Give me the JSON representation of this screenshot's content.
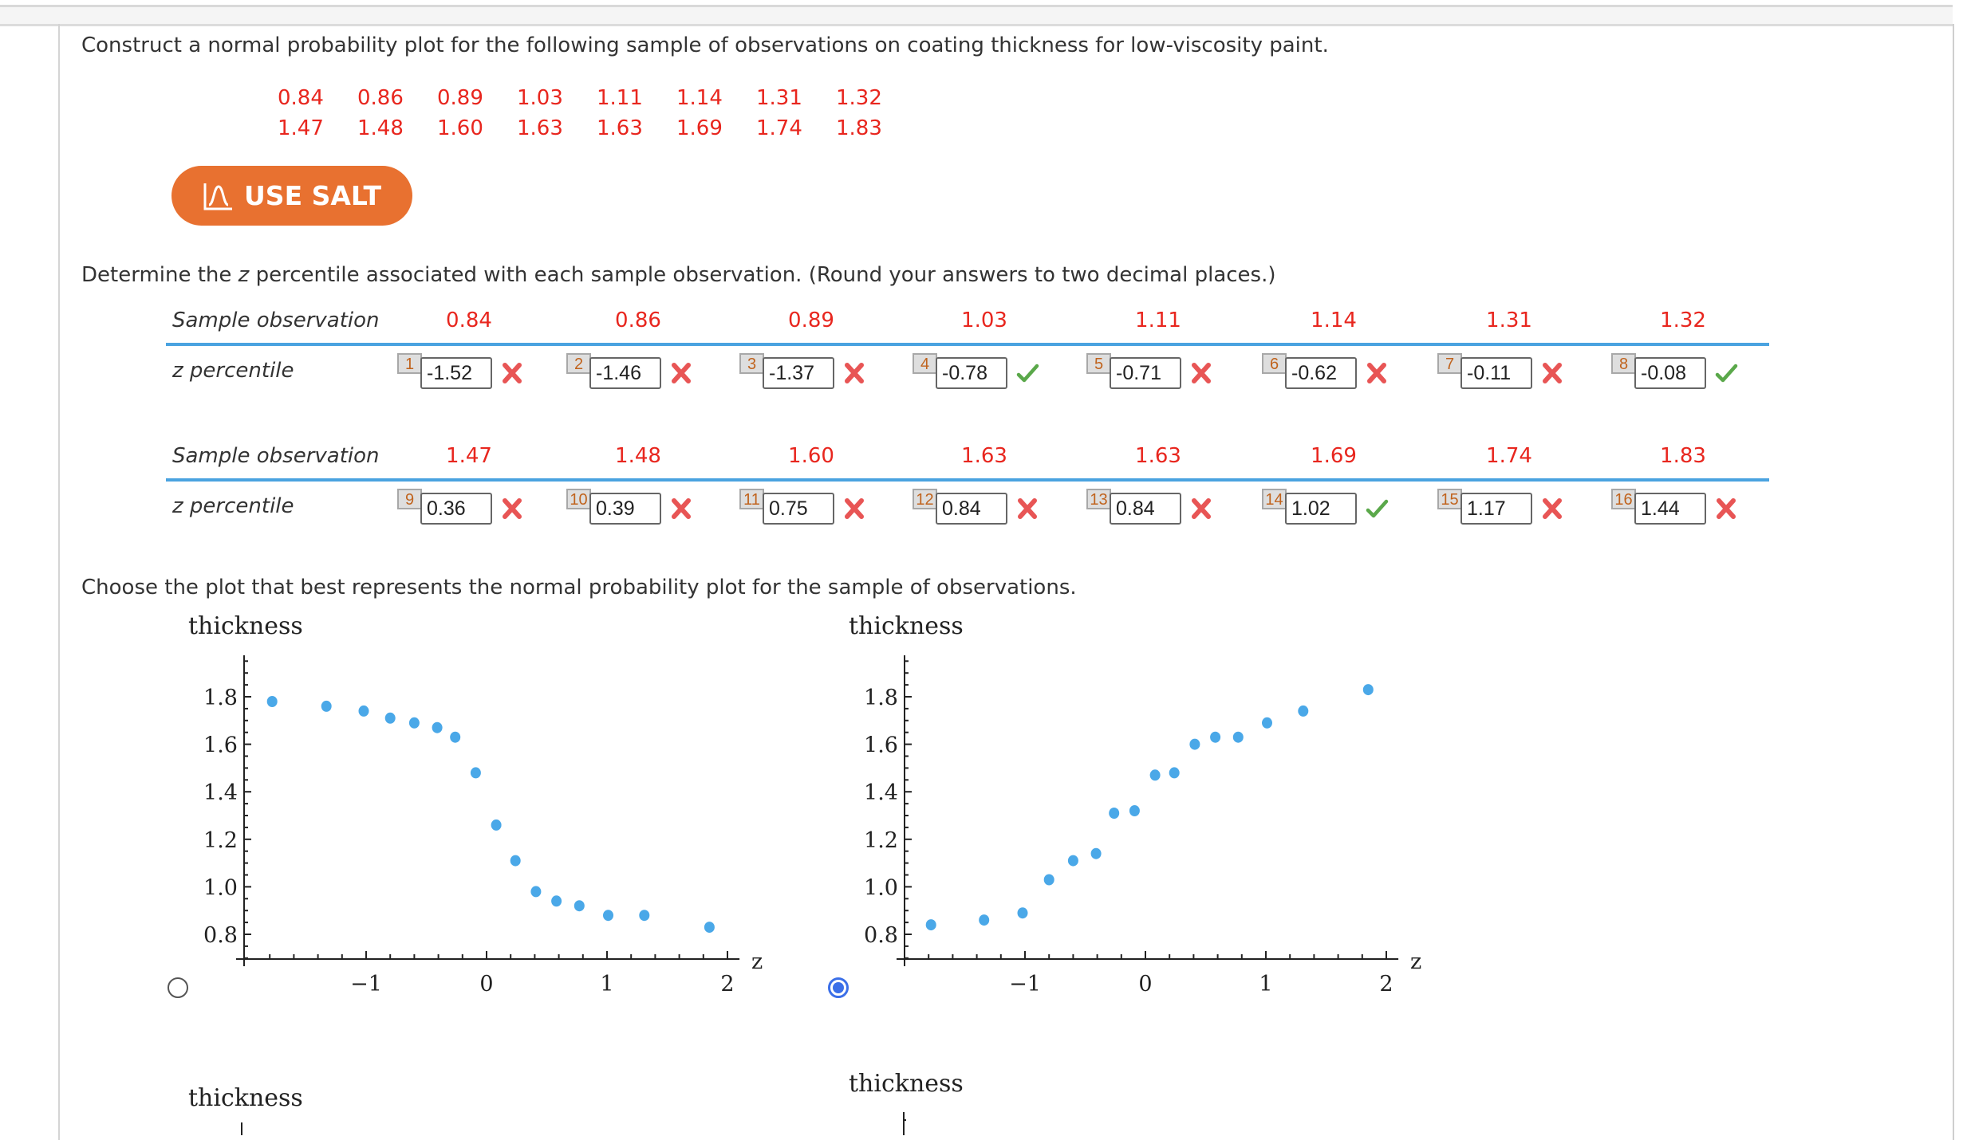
{
  "question": {
    "text": "Construct a normal probability plot for the following sample of observations on coating thickness for low-viscosity paint.",
    "observations": [
      "0.84",
      "0.86",
      "0.89",
      "1.03",
      "1.11",
      "1.14",
      "1.31",
      "1.32",
      "1.47",
      "1.48",
      "1.60",
      "1.63",
      "1.63",
      "1.69",
      "1.74",
      "1.83"
    ]
  },
  "salt_button": {
    "label": "USE SALT",
    "icon": "bell-curve-icon"
  },
  "instruction": {
    "prefix": "Determine the ",
    "italic": "z",
    "suffix": " percentile associated with each sample observation. (Round your answers to two decimal places.)"
  },
  "table": {
    "row_header_obs": "Sample observation",
    "row_header_z": "z percentile",
    "rows": [
      {
        "cells": [
          {
            "n": "1",
            "obs": "0.84",
            "value": "-1.52",
            "status": "incorrect"
          },
          {
            "n": "2",
            "obs": "0.86",
            "value": "-1.46",
            "status": "incorrect"
          },
          {
            "n": "3",
            "obs": "0.89",
            "value": "-1.37",
            "status": "incorrect"
          },
          {
            "n": "4",
            "obs": "1.03",
            "value": "-0.78",
            "status": "correct"
          },
          {
            "n": "5",
            "obs": "1.11",
            "value": "-0.71",
            "status": "incorrect"
          },
          {
            "n": "6",
            "obs": "1.14",
            "value": "-0.62",
            "status": "incorrect"
          },
          {
            "n": "7",
            "obs": "1.31",
            "value": "-0.11",
            "status": "incorrect"
          },
          {
            "n": "8",
            "obs": "1.32",
            "value": "-0.08",
            "status": "correct"
          }
        ]
      },
      {
        "cells": [
          {
            "n": "9",
            "obs": "1.47",
            "value": "0.36",
            "status": "incorrect"
          },
          {
            "n": "10",
            "obs": "1.48",
            "value": "0.39",
            "status": "incorrect"
          },
          {
            "n": "11",
            "obs": "1.60",
            "value": "0.75",
            "status": "incorrect"
          },
          {
            "n": "12",
            "obs": "1.63",
            "value": "0.84",
            "status": "incorrect"
          },
          {
            "n": "13",
            "obs": "1.63",
            "value": "0.84",
            "status": "incorrect"
          },
          {
            "n": "14",
            "obs": "1.69",
            "value": "1.02",
            "status": "correct"
          },
          {
            "n": "15",
            "obs": "1.74",
            "value": "1.17",
            "status": "incorrect"
          },
          {
            "n": "16",
            "obs": "1.83",
            "value": "1.44",
            "status": "incorrect"
          }
        ]
      }
    ]
  },
  "choose_text": "Choose the plot that best represents the normal probability plot for the sample of observations.",
  "colors": {
    "observation_red": "#e8261e",
    "salt_orange": "#e87130",
    "table_rule_blue": "#4aa3e0",
    "point_blue": "#4aa8e8",
    "correct_green": "#5aa84a",
    "incorrect_red": "#e85555",
    "radio_selected": "#3b6fe8"
  },
  "chart_data": [
    {
      "type": "scatter",
      "title": "",
      "ylabel": "thickness",
      "xlabel": "z",
      "xticks": [
        "-1",
        "0",
        "1",
        "2"
      ],
      "yticks": [
        "0.8",
        "1.0",
        "1.2",
        "1.4",
        "1.6",
        "1.8"
      ],
      "xlim": [
        -1.9,
        2.05
      ],
      "ylim": [
        0.7,
        1.97
      ],
      "selected": false,
      "points": [
        {
          "x": -1.78,
          "y": 1.78
        },
        {
          "x": -1.33,
          "y": 1.76
        },
        {
          "x": -1.02,
          "y": 1.74
        },
        {
          "x": -0.8,
          "y": 1.71
        },
        {
          "x": -0.6,
          "y": 1.69
        },
        {
          "x": -0.41,
          "y": 1.67
        },
        {
          "x": -0.26,
          "y": 1.63
        },
        {
          "x": -0.09,
          "y": 1.48
        },
        {
          "x": 0.08,
          "y": 1.26
        },
        {
          "x": 0.24,
          "y": 1.11
        },
        {
          "x": 0.41,
          "y": 0.98
        },
        {
          "x": 0.58,
          "y": 0.94
        },
        {
          "x": 0.77,
          "y": 0.92
        },
        {
          "x": 1.01,
          "y": 0.88
        },
        {
          "x": 1.31,
          "y": 0.88
        },
        {
          "x": 1.85,
          "y": 0.83
        }
      ]
    },
    {
      "type": "scatter",
      "title": "",
      "ylabel": "thickness",
      "xlabel": "z",
      "xticks": [
        "-1",
        "0",
        "1",
        "2"
      ],
      "yticks": [
        "0.8",
        "1.0",
        "1.2",
        "1.4",
        "1.6",
        "1.8"
      ],
      "xlim": [
        -1.9,
        2.05
      ],
      "ylim": [
        0.7,
        1.97
      ],
      "selected": true,
      "points": [
        {
          "x": -1.78,
          "y": 0.84
        },
        {
          "x": -1.34,
          "y": 0.86
        },
        {
          "x": -1.02,
          "y": 0.89
        },
        {
          "x": -0.8,
          "y": 1.03
        },
        {
          "x": -0.6,
          "y": 1.11
        },
        {
          "x": -0.41,
          "y": 1.14
        },
        {
          "x": -0.26,
          "y": 1.31
        },
        {
          "x": -0.09,
          "y": 1.32
        },
        {
          "x": 0.08,
          "y": 1.47
        },
        {
          "x": 0.24,
          "y": 1.48
        },
        {
          "x": 0.41,
          "y": 1.6
        },
        {
          "x": 0.58,
          "y": 1.63
        },
        {
          "x": 0.77,
          "y": 1.63
        },
        {
          "x": 1.01,
          "y": 1.69
        },
        {
          "x": 1.31,
          "y": 1.74
        },
        {
          "x": 1.85,
          "y": 1.83
        }
      ]
    }
  ],
  "partial_charts": [
    {
      "ylabel": "thickness"
    },
    {
      "ylabel": "thickness"
    }
  ]
}
